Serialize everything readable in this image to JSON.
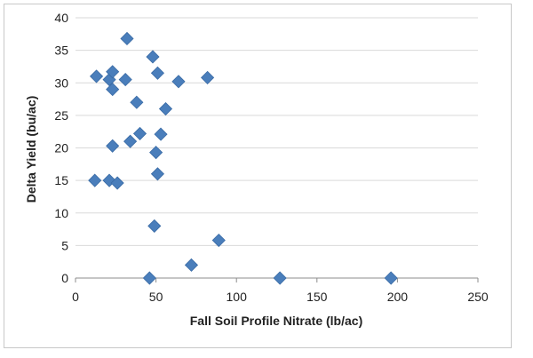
{
  "chart_data": {
    "type": "scatter",
    "title": "",
    "xlabel": "Fall Soil Profile Nitrate (lb/ac)",
    "ylabel": "Delta Yield (bu/ac)",
    "xlim": [
      0,
      250
    ],
    "ylim": [
      0,
      40
    ],
    "x_ticks": [
      "0",
      "50",
      "100",
      "150",
      "200",
      "250"
    ],
    "y_ticks": [
      "0",
      "5",
      "10",
      "15",
      "20",
      "25",
      "30",
      "35",
      "40"
    ],
    "grid": "horizontal",
    "legend": "none",
    "marker": "diamond",
    "marker_color": "#4a7ebb",
    "series": [
      {
        "points": [
          {
            "x": 12,
            "y": 15.0
          },
          {
            "x": 13,
            "y": 31.0
          },
          {
            "x": 21,
            "y": 15.0
          },
          {
            "x": 21,
            "y": 30.5
          },
          {
            "x": 23,
            "y": 29.0
          },
          {
            "x": 23,
            "y": 31.7
          },
          {
            "x": 23,
            "y": 20.3
          },
          {
            "x": 26,
            "y": 14.6
          },
          {
            "x": 31,
            "y": 30.5
          },
          {
            "x": 32,
            "y": 36.8
          },
          {
            "x": 34,
            "y": 21.0
          },
          {
            "x": 38,
            "y": 27.0
          },
          {
            "x": 40,
            "y": 22.2
          },
          {
            "x": 46,
            "y": 0.0
          },
          {
            "x": 48,
            "y": 34.0
          },
          {
            "x": 49,
            "y": 8.0
          },
          {
            "x": 50,
            "y": 19.3
          },
          {
            "x": 51,
            "y": 31.5
          },
          {
            "x": 51,
            "y": 16.0
          },
          {
            "x": 53,
            "y": 22.1
          },
          {
            "x": 56,
            "y": 26.0
          },
          {
            "x": 64,
            "y": 30.2
          },
          {
            "x": 72,
            "y": 2.0
          },
          {
            "x": 82,
            "y": 30.8
          },
          {
            "x": 89,
            "y": 5.8
          },
          {
            "x": 127,
            "y": 0.0
          },
          {
            "x": 196,
            "y": 0.0
          }
        ]
      }
    ]
  }
}
